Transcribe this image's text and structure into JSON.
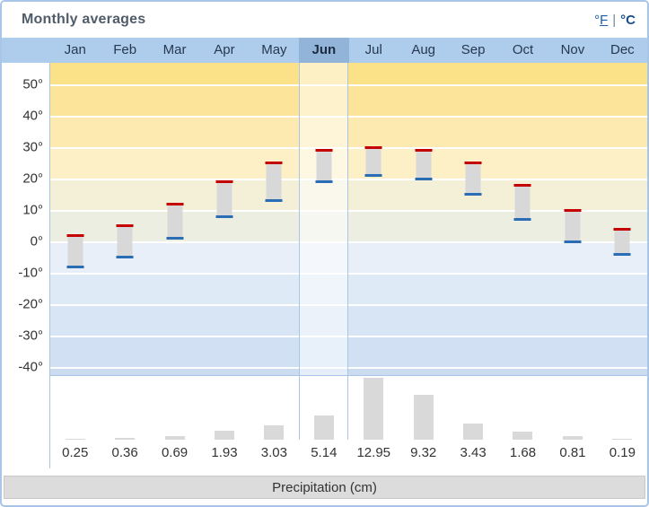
{
  "header": {
    "title": "Monthly averages",
    "unit_fahrenheit_prefix": "°",
    "unit_fahrenheit_letter": "F",
    "unit_separator": "|",
    "unit_celsius": "°C",
    "selected_unit": "°C"
  },
  "months": {
    "labels": [
      "Jan",
      "Feb",
      "Mar",
      "Apr",
      "May",
      "Jun",
      "Jul",
      "Aug",
      "Sep",
      "Oct",
      "Nov",
      "Dec"
    ],
    "highlighted": "Jun"
  },
  "chart_data": {
    "type": "range-bar",
    "title": "Monthly averages",
    "categories": [
      "Jan",
      "Feb",
      "Mar",
      "Apr",
      "May",
      "Jun",
      "Jul",
      "Aug",
      "Sep",
      "Oct",
      "Nov",
      "Dec"
    ],
    "series": [
      {
        "name": "average-high-temperature",
        "unit": "°C",
        "color": "#c40000",
        "values": [
          2,
          5,
          12,
          19,
          25,
          29,
          30,
          29,
          25,
          18,
          10,
          4
        ]
      },
      {
        "name": "average-low-temperature",
        "unit": "°C",
        "color": "#2a6db5",
        "values": [
          -8,
          -5,
          1,
          8,
          13,
          19,
          21,
          20,
          15,
          7,
          0,
          -4
        ]
      }
    ],
    "y_axis": {
      "tick_labels": [
        "50°",
        "40°",
        "30°",
        "20°",
        "10°",
        "0°",
        "-10°",
        "-20°",
        "-30°",
        "-40°"
      ],
      "tick_values": [
        50,
        40,
        30,
        20,
        10,
        0,
        -10,
        -20,
        -30,
        -40
      ],
      "min": -42,
      "max": 57,
      "grid": "on",
      "grid_color": "#ffffff"
    },
    "highlighted_category": "Jun",
    "band_colors": [
      "#fbe188",
      "#fce49a",
      "#fdeab0",
      "#fdf0c6",
      "#f4f0d8",
      "#edeee2",
      "#e8eff8",
      "#dfeaf7",
      "#d8e5f4",
      "#d1e0f2",
      "#cbdcf0"
    ],
    "precipitation": {
      "type": "bar",
      "unit": "cm",
      "color": "#d9d9d9",
      "values": [
        0.25,
        0.36,
        0.69,
        1.93,
        3.03,
        5.14,
        12.95,
        9.32,
        3.43,
        1.68,
        0.81,
        0.19
      ],
      "labels": [
        "0.25",
        "0.36",
        "0.69",
        "1.93",
        "3.03",
        "5.14",
        "12.95",
        "9.32",
        "3.43",
        "1.68",
        "0.81",
        "0.19"
      ]
    }
  },
  "footer": {
    "label": "Precipitation (cm)"
  },
  "colors": {
    "accent_border": "#a9c6e8",
    "month_row_bg": "#aecdec",
    "month_selected_bg": "#92b4d8",
    "high_temp_red": "#c40000",
    "low_temp_blue": "#2a6db5",
    "bar_gray": "#d8d8d8",
    "precip_gray": "#d9d9d9",
    "footer_bg": "#dcdcdc",
    "link_blue": "#1a5dab"
  }
}
